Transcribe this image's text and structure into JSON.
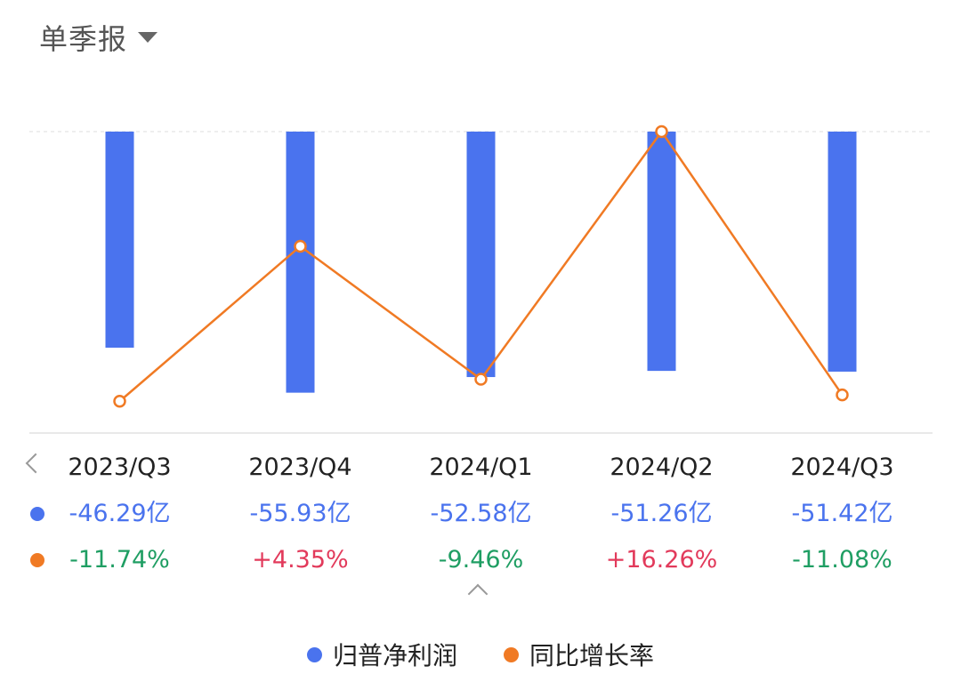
{
  "header": {
    "period_label": "单季报"
  },
  "colors": {
    "bar": "#4a73ee",
    "line": "#f07a24",
    "up": "#e23a5b",
    "down": "#1f9e63"
  },
  "chart_data": {
    "type": "bar",
    "categories": [
      "2023/Q3",
      "2023/Q4",
      "2024/Q1",
      "2024/Q2",
      "2024/Q3"
    ],
    "series": [
      {
        "name": "归普净利润",
        "type": "bar",
        "unit": "亿",
        "values": [
          -46.29,
          -55.93,
          -52.58,
          -51.26,
          -51.42
        ]
      },
      {
        "name": "同比增长率",
        "type": "line",
        "unit": "%",
        "values": [
          -11.74,
          4.35,
          -9.46,
          16.26,
          -11.08
        ]
      }
    ],
    "bar_axis_range": [
      -60,
      0
    ],
    "line_axis_range": [
      -13,
      16.26
    ]
  },
  "table": {
    "profit_labels": [
      "-46.29亿",
      "-55.93亿",
      "-52.58亿",
      "-51.26亿",
      "-51.42亿"
    ],
    "growth_labels": [
      "-11.74%",
      "+4.35%",
      "-9.46%",
      "+16.26%",
      "-11.08%"
    ],
    "growth_direction": [
      "down",
      "up",
      "down",
      "up",
      "down"
    ]
  },
  "legend": [
    {
      "label": "归普净利润",
      "color": "#4a73ee"
    },
    {
      "label": "同比增长率",
      "color": "#f07a24"
    }
  ]
}
